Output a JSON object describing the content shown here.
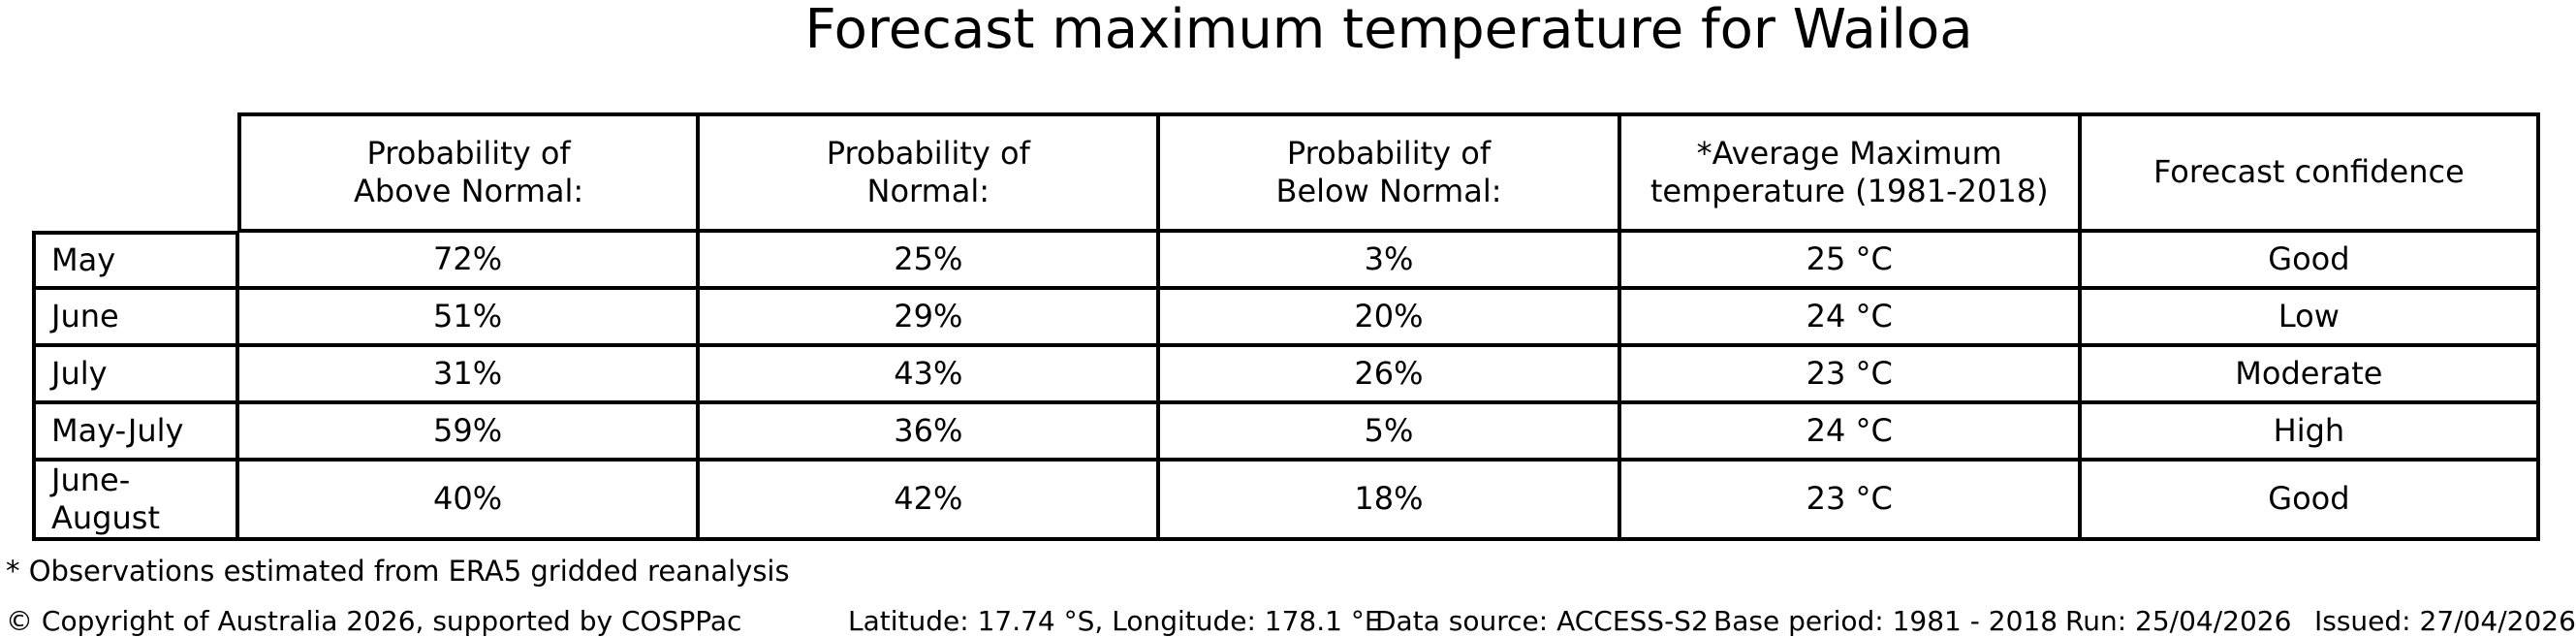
{
  "title": "Forecast maximum temperature for Wailoa",
  "table": {
    "column_headers": [
      "Probability of\nAbove Normal:",
      "Probability of\nNormal:",
      "Probability of\nBelow Normal:",
      "*Average Maximum\ntemperature (1981-2018)",
      "Forecast confidence"
    ],
    "rows": [
      {
        "period": "May",
        "above": "72%",
        "normal": "25%",
        "below": "3%",
        "avg_max": "25 °C",
        "confidence": "Good"
      },
      {
        "period": "June",
        "above": "51%",
        "normal": "29%",
        "below": "20%",
        "avg_max": "24 °C",
        "confidence": "Low"
      },
      {
        "period": "July",
        "above": "31%",
        "normal": "43%",
        "below": "26%",
        "avg_max": "23 °C",
        "confidence": "Moderate"
      },
      {
        "period": "May-July",
        "above": "59%",
        "normal": "36%",
        "below": "5%",
        "avg_max": "24 °C",
        "confidence": "High"
      },
      {
        "period": "June-August",
        "above": "40%",
        "normal": "42%",
        "below": "18%",
        "avg_max": "23 °C",
        "confidence": "Good"
      }
    ]
  },
  "footnote": "* Observations estimated from ERA5 gridded reanalysis",
  "footer": {
    "copyright": "© Copyright of Australia 2026, supported by COSPPac",
    "location": "Latitude: 17.74 °S, Longitude: 178.1 °E",
    "data_source": "Data source: ACCESS-S2",
    "base_period": "Base period: 1981 - 2018",
    "run": "Run: 25/04/2026",
    "issued": "Issued: 27/04/2026"
  },
  "colors": {
    "text": "#000000",
    "background": "#ffffff",
    "border": "#000000"
  },
  "chart_data": {
    "type": "table",
    "title": "Forecast maximum temperature for Wailoa",
    "row_labels": [
      "May",
      "June",
      "July",
      "May-July",
      "June-August"
    ],
    "columns": [
      "Probability of Above Normal:",
      "Probability of Normal:",
      "Probability of Below Normal:",
      "*Average Maximum temperature (1981-2018)",
      "Forecast confidence"
    ],
    "cells": [
      [
        "72%",
        "25%",
        "3%",
        "25 °C",
        "Good"
      ],
      [
        "51%",
        "29%",
        "20%",
        "24 °C",
        "Low"
      ],
      [
        "31%",
        "43%",
        "26%",
        "23 °C",
        "Moderate"
      ],
      [
        "59%",
        "36%",
        "5%",
        "24 °C",
        "High"
      ],
      [
        "40%",
        "42%",
        "18%",
        "23 °C",
        "Good"
      ]
    ]
  }
}
